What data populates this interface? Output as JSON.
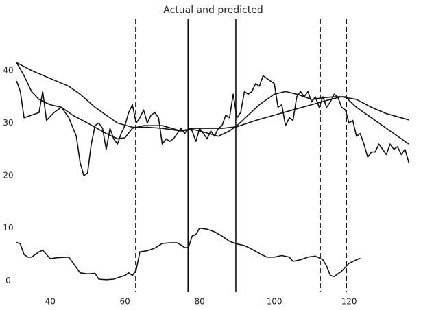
{
  "chart_data": {
    "type": "line",
    "title": "Actual and predicted",
    "xlim": [
      30.6,
      136.7
    ],
    "ylim": [
      -2.7,
      50.8
    ],
    "xticks": [
      40,
      60,
      80,
      100,
      120
    ],
    "yticks": [
      0,
      10,
      20,
      30,
      40
    ],
    "grid": false,
    "vlines": [
      {
        "x": 62.9,
        "style": "dashed"
      },
      {
        "x": 76.9,
        "style": "solid"
      },
      {
        "x": 89.7,
        "style": "solid"
      },
      {
        "x": 112.3,
        "style": "dashed"
      },
      {
        "x": 119.3,
        "style": "dashed"
      }
    ],
    "series": [
      {
        "color": "#111111",
        "x": [
          31,
          32,
          33,
          35,
          37,
          38,
          39,
          41,
          43,
          45,
          47,
          48,
          49,
          50,
          51,
          52,
          53,
          54,
          55,
          56,
          57,
          58,
          59,
          60,
          61,
          62,
          63,
          64,
          65,
          66,
          67,
          68,
          69,
          70,
          71,
          72,
          73,
          74,
          75,
          76,
          77,
          78,
          79,
          80,
          81,
          82,
          83,
          84,
          85,
          86,
          87,
          88,
          89,
          90,
          91,
          92,
          93,
          94,
          95,
          96,
          97,
          98,
          99,
          100,
          101,
          102,
          103,
          104,
          105,
          106,
          107,
          108,
          109,
          110,
          111,
          112,
          113,
          114,
          115,
          116,
          117,
          118,
          119,
          120,
          121,
          122,
          123,
          124,
          125,
          126,
          127,
          128,
          129,
          130,
          131,
          132,
          133,
          134,
          135,
          136
        ],
        "values": [
          38,
          36,
          31,
          31.5,
          32,
          36,
          30.5,
          32,
          33,
          31,
          27.5,
          22.5,
          20,
          20.5,
          26,
          29.5,
          30,
          29,
          25,
          29,
          27,
          26,
          28,
          29.5,
          32,
          33.5,
          30,
          31,
          32.5,
          30,
          31.5,
          32,
          31,
          26,
          27,
          26.5,
          27,
          28,
          29,
          28,
          29,
          28.5,
          26.5,
          29,
          28,
          27,
          28.5,
          27.5,
          29,
          29.5,
          31.5,
          31,
          35.5,
          31,
          32,
          36,
          35.5,
          36,
          37.5,
          37,
          39,
          38.5,
          38,
          37.5,
          33,
          33.5,
          29.5,
          31,
          30.5,
          35,
          36,
          35,
          36,
          34,
          35,
          33,
          35,
          33,
          34,
          35.5,
          35,
          33,
          32.5,
          30,
          30.5,
          27.5,
          28,
          26,
          23.5,
          24.5,
          24.5,
          26,
          25,
          24,
          26,
          25,
          25.5,
          24,
          25,
          22.5
        ]
      },
      {
        "color": "#111111",
        "x": [
          31,
          33,
          35,
          37,
          40,
          43,
          46,
          50,
          55,
          58,
          60,
          62,
          65,
          70,
          75,
          78,
          80,
          85,
          88,
          90,
          93,
          96,
          100,
          103,
          106,
          110,
          113,
          116,
          119,
          122,
          126,
          130,
          134,
          136
        ],
        "values": [
          41.5,
          39,
          36,
          34.5,
          33.5,
          33,
          31.5,
          30,
          28,
          27,
          27.2,
          29,
          29.5,
          29.5,
          28.5,
          28.8,
          28.5,
          27.5,
          28.5,
          29.5,
          31.5,
          33.5,
          35.5,
          36,
          35.5,
          34.5,
          34.8,
          35,
          35,
          33,
          31,
          29,
          27,
          26
        ]
      },
      {
        "color": "#111111",
        "x": [
          31,
          35,
          40,
          45,
          48,
          52,
          55,
          58,
          62,
          66,
          70,
          75,
          78,
          82,
          86,
          90,
          95,
          100,
          105,
          110,
          115,
          118,
          122,
          126,
          130,
          134,
          136
        ],
        "values": [
          41.5,
          40,
          38.5,
          37,
          35.5,
          33,
          31.5,
          30,
          29.2,
          29.2,
          29,
          28.5,
          29,
          29,
          29,
          29.3,
          30.5,
          31.5,
          32.5,
          33.5,
          34.5,
          35,
          34.5,
          33,
          31.8,
          31,
          30.6
        ]
      },
      {
        "color": "#111111",
        "x": [
          31,
          32,
          33,
          34,
          35,
          37,
          38,
          40,
          42,
          45,
          47,
          48,
          50,
          52,
          53,
          55,
          57,
          59,
          60,
          61,
          62,
          63,
          64,
          66,
          68,
          70,
          72,
          74,
          75,
          76,
          77,
          78,
          79,
          80,
          82,
          84,
          86,
          88,
          90,
          92,
          94,
          96,
          98,
          100,
          102,
          104,
          105,
          107,
          109,
          111,
          113,
          114,
          115,
          116,
          118,
          120,
          122,
          123
        ],
        "values": [
          7.3,
          7,
          5,
          4.5,
          4.5,
          5.5,
          5.8,
          4.2,
          4.4,
          4.5,
          2.5,
          1.5,
          1.3,
          1.4,
          0.3,
          0.2,
          0.3,
          0.8,
          1,
          1.5,
          1,
          2,
          5.5,
          5.7,
          6.2,
          7.1,
          7.2,
          7.2,
          6.8,
          6.3,
          6.3,
          8.5,
          8.8,
          10,
          9.8,
          9.3,
          8.5,
          7.5,
          7,
          6.7,
          6,
          5.2,
          4.5,
          4.5,
          4.8,
          4.5,
          3.7,
          4,
          4.5,
          4.7,
          4,
          2.8,
          1,
          0.8,
          1.8,
          3.3,
          4,
          4.3
        ]
      }
    ]
  }
}
